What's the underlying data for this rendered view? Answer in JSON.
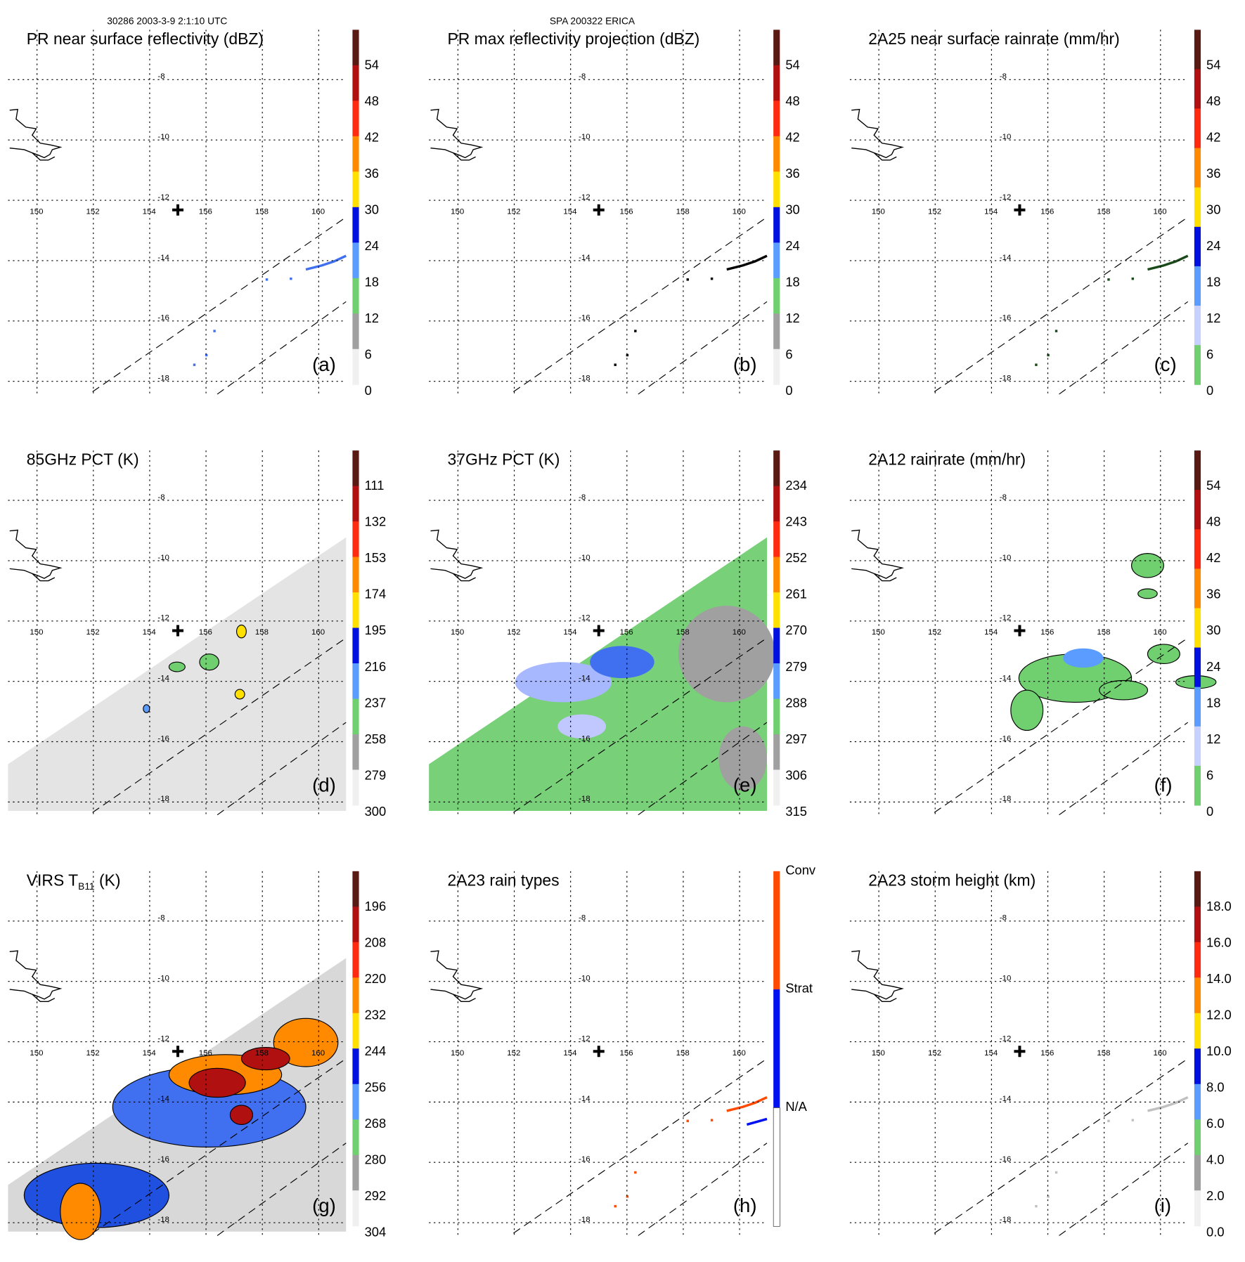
{
  "header": {
    "left": "30286 2003-3-9 2:1:10 UTC",
    "center": "SPA 200322 ERICA"
  },
  "grid": {
    "lon_labels": [
      "150",
      "152",
      "154",
      "156",
      "158",
      "160"
    ],
    "lat_labels": [
      "-8",
      "-10",
      "-12",
      "-14",
      "-16",
      "-18"
    ]
  },
  "palettes": {
    "dbz": [
      "#5a1a14",
      "#b01010",
      "#ff2a10",
      "#ff8a00",
      "#ffe000",
      "#0010e0",
      "#5a9cff",
      "#70d070",
      "#a0a0a0",
      "#f0f0f0"
    ],
    "rain": [
      "#5a1a14",
      "#b01010",
      "#ff2a10",
      "#ff8a00",
      "#ffe000",
      "#0010e0",
      "#5a9cff",
      "#c8d0ff",
      "#70d070"
    ],
    "types": [
      "#ff4a00",
      "#0010f0",
      "#ffffff"
    ]
  },
  "panels": [
    {
      "title": "PR near surface reflectivity (dBZ)",
      "letter": "(a)",
      "palette": "dbz",
      "colorbar_labels": [
        "54",
        "48",
        "42",
        "36",
        "30",
        "24",
        "18",
        "12",
        "6",
        "0"
      ],
      "field": "sparse"
    },
    {
      "title": "PR max reflectivity projection (dBZ)",
      "letter": "(b)",
      "palette": "dbz",
      "colorbar_labels": [
        "54",
        "48",
        "42",
        "36",
        "30",
        "24",
        "18",
        "12",
        "6",
        "0"
      ],
      "field": "sparse"
    },
    {
      "title": "2A25 near surface rainrate (mm/hr)",
      "letter": "(c)",
      "palette": "rain",
      "colorbar_labels": [
        "54",
        "48",
        "42",
        "36",
        "30",
        "24",
        "18",
        "12",
        "6",
        "0"
      ],
      "field": "sparse"
    },
    {
      "title": "85GHz PCT (K)",
      "letter": "(d)",
      "palette": "dbz",
      "colorbar_labels": [
        "111",
        "132",
        "153",
        "174",
        "195",
        "216",
        "237",
        "258",
        "279",
        "300"
      ],
      "field": "pct85"
    },
    {
      "title": "37GHz PCT (K)",
      "letter": "(e)",
      "palette": "dbz",
      "colorbar_labels": [
        "234",
        "243",
        "252",
        "261",
        "270",
        "279",
        "288",
        "297",
        "306",
        "315"
      ],
      "field": "pct37"
    },
    {
      "title": "2A12 rainrate (mm/hr)",
      "letter": "(f)",
      "palette": "rain",
      "colorbar_labels": [
        "54",
        "48",
        "42",
        "36",
        "30",
        "24",
        "18",
        "12",
        "6",
        "0"
      ],
      "field": "rain2a12"
    },
    {
      "title": "VIRS T",
      "title_sub": "B11",
      "title_end": " (K)",
      "letter": "(g)",
      "palette": "dbz",
      "colorbar_labels": [
        "196",
        "208",
        "220",
        "232",
        "244",
        "256",
        "268",
        "280",
        "292",
        "304"
      ],
      "field": "virs"
    },
    {
      "title": "2A23 rain types",
      "letter": "(h)",
      "palette": "types",
      "colorbar_labels": [
        "Conv",
        "Strat",
        "N/A"
      ],
      "field": "sparse"
    },
    {
      "title": "2A23 storm height (km)",
      "letter": "(i)",
      "palette": "dbz",
      "colorbar_labels": [
        "18.0",
        "16.0",
        "14.0",
        "12.0",
        "10.0",
        "8.0",
        "6.0",
        "4.0",
        "2.0",
        "0.0"
      ],
      "field": "sparse"
    }
  ]
}
